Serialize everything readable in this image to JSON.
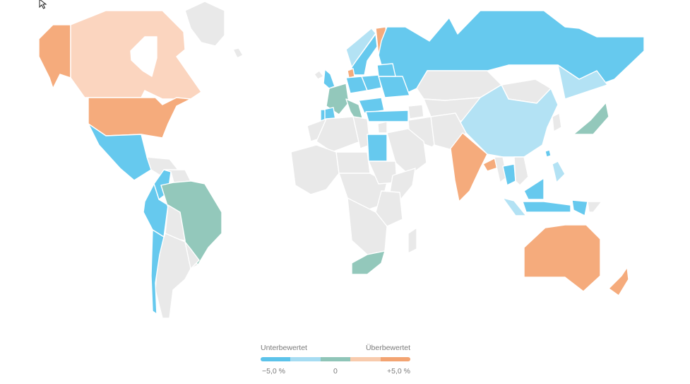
{
  "legend": {
    "label_left": "Unterbewertet",
    "label_right": "Überbewertet",
    "tick_min": "−5,0 %",
    "tick_mid": "0",
    "tick_max": "+5,0 %",
    "scale_colors": [
      "#5cc3ea",
      "#a6dcf2",
      "#8fc5b8",
      "#f8cbad",
      "#f3a472"
    ]
  },
  "colors": {
    "strong_under": "#66c9ee",
    "under": "#b3e2f4",
    "neutral": "#93c8bb",
    "over": "#fbd5bf",
    "strong_over": "#f5ab7c",
    "no_data": "#e9e9e9"
  },
  "icons": {
    "cursor": "mouse-pointer-icon"
  }
}
